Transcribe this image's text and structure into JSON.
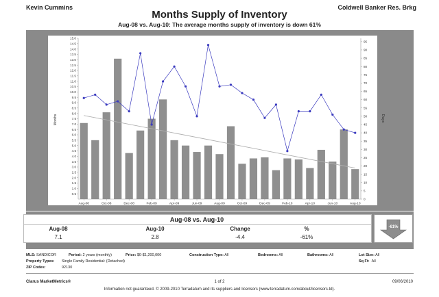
{
  "header": {
    "agent": "Kevin Cummins",
    "brokerage": "Coldwell Banker Res. Brkg",
    "title": "Months Supply of Inventory",
    "subtitle": "Aug-08 vs. Aug-10:  The average months supply of inventory is down 61%"
  },
  "chart_data": {
    "type": "bar",
    "title": "Months Supply of Inventory",
    "y_left_label": "Months",
    "y_right_label": "Days",
    "y_left_lim": [
      0,
      15
    ],
    "y_left_ticks": [
      "0.5",
      "1.0",
      "1.5",
      "2.0",
      "2.5",
      "3.0",
      "3.5",
      "4.0",
      "4.5",
      "5.0",
      "5.5",
      "6.0",
      "6.5",
      "7.0",
      "7.5",
      "8.0",
      "8.5",
      "9.0",
      "9.5",
      "10.0",
      "10.5",
      "11.0",
      "11.5",
      "12.0",
      "12.5",
      "13.0",
      "13.5",
      "14.0",
      "14.5",
      "15.0"
    ],
    "y_right_lim": [
      0,
      97
    ],
    "y_right_ticks": [
      "0",
      "5",
      "10",
      "15",
      "20",
      "25",
      "30",
      "35",
      "40",
      "45",
      "50",
      "55",
      "60",
      "65",
      "70",
      "75",
      "80",
      "85",
      "90",
      "95"
    ],
    "x_tick_labels": [
      "Aug-08",
      "Oct-08",
      "Dec-08",
      "Feb-09",
      "Apr-09",
      "Jun-09",
      "Aug-09",
      "Oct-09",
      "Dec-09",
      "Feb-10",
      "Apr-10",
      "Jun-10",
      "Aug-10"
    ],
    "months_supply": [
      7.1,
      5.5,
      8.1,
      13.1,
      4.3,
      6.4,
      7.5,
      9.3,
      5.5,
      5.0,
      4.4,
      5.0,
      4.2,
      6.8,
      3.3,
      3.8,
      3.9,
      2.7,
      3.8,
      3.7,
      2.9,
      4.6,
      3.5,
      6.5,
      2.8
    ],
    "days_on_market": [
      61,
      63,
      57,
      59,
      53,
      88,
      45,
      71,
      80,
      68,
      50,
      93,
      68,
      69,
      64,
      60,
      49,
      57,
      29,
      53,
      53,
      63,
      51,
      42,
      40
    ],
    "trend_line": {
      "start": 7.8,
      "end": 2.9
    }
  },
  "summary": {
    "title": "Aug-08 vs. Aug-10",
    "headers": [
      "Aug-08",
      "Aug-10",
      "Change",
      "%"
    ],
    "values": [
      "7.1",
      "2.8",
      "-4.4",
      "-61%"
    ],
    "arrow_label": "-61%"
  },
  "criteria": {
    "mls_label": "MLS:",
    "mls_value": "SANDICOR",
    "period_label": "Period:",
    "period_value": "2 years (monthly)",
    "price_label": "Price:",
    "price_value": "$0-$1,200,000",
    "construction_label": "Construction Type:",
    "construction_value": "All",
    "bedrooms_label": "Bedrooms:",
    "bedrooms_value": "All",
    "bathrooms_label": "Bathrooms:",
    "bathrooms_value": "All",
    "lotsize_label": "Lot Size:",
    "lotsize_value": "All",
    "sqft_label": "Sq Ft:",
    "sqft_value": "All",
    "proptype_label": "Property Types:",
    "proptype_value": "Single Family Residential: (Detached)",
    "zip_label": "ZIP Codes:",
    "zip_value": "92130"
  },
  "footer": {
    "brand": "Clarus MarketMetrics®",
    "page": "1 of 2",
    "date": "09/06/2010",
    "disclaimer": "Information not guaranteed.  © 2009-2010 Terradatum and its suppliers and licensors (www.terradatum.com/about/licensors.td)."
  },
  "colors": {
    "bar": "#8f8f8f",
    "line": "#3b3bbf",
    "band": "#8a8a8a",
    "trend": "#b0b0b0"
  }
}
